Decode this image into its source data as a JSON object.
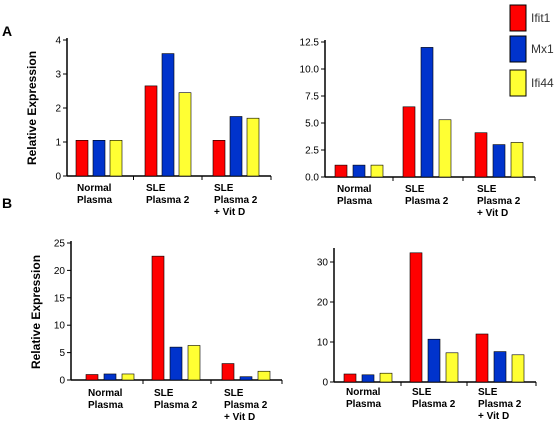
{
  "panels": [
    {
      "label": "A"
    },
    {
      "label": "B"
    }
  ],
  "ylabel": "Relative Expression",
  "legend": [
    {
      "name": "Ifit1",
      "color": "#ff0000"
    },
    {
      "name": "Mx1",
      "color": "#0033cc"
    },
    {
      "name": "Ifi44",
      "color": "#ffff33"
    }
  ],
  "chart_data": [
    {
      "type": "bar",
      "categories": [
        [
          "Normal",
          "Plasma"
        ],
        [
          "SLE",
          "Plasma 2"
        ],
        [
          "SLE",
          "Plasma 2",
          "+ Vit D"
        ]
      ],
      "ylim": [
        0,
        4
      ],
      "yticks": [
        "0",
        "1",
        "2",
        "3",
        "4"
      ],
      "ylabel": "Relative Expression",
      "series": [
        {
          "name": "Ifit1",
          "values": [
            1.05,
            2.65,
            1.05
          ]
        },
        {
          "name": "Mx1",
          "values": [
            1.05,
            3.6,
            1.75
          ]
        },
        {
          "name": "Ifi44",
          "values": [
            1.05,
            2.45,
            1.7
          ]
        }
      ]
    },
    {
      "type": "bar",
      "categories": [
        [
          "Normal",
          "Plasma"
        ],
        [
          "SLE",
          "Plasma 2"
        ],
        [
          "SLE",
          "Plasma 2",
          "+ Vit D"
        ]
      ],
      "ylim": [
        0,
        12.5
      ],
      "yticks": [
        "0.0",
        "2.5",
        "5.0",
        "7.5",
        "10.0",
        "12.5"
      ],
      "series": [
        {
          "name": "Ifit1",
          "values": [
            1.1,
            6.5,
            4.1
          ]
        },
        {
          "name": "Mx1",
          "values": [
            1.1,
            12.0,
            3.0
          ]
        },
        {
          "name": "Ifi44",
          "values": [
            1.1,
            5.3,
            3.2
          ]
        }
      ]
    },
    {
      "type": "bar",
      "categories": [
        [
          "Normal",
          "Plasma"
        ],
        [
          "SLE",
          "Plasma 2"
        ],
        [
          "SLE",
          "Plasma 2",
          "+ Vit D"
        ]
      ],
      "ylim": [
        0,
        25
      ],
      "yticks": [
        "0",
        "5",
        "10",
        "15",
        "20",
        "25"
      ],
      "ylabel": "Relative Expression",
      "series": [
        {
          "name": "Ifit1",
          "values": [
            1.0,
            22.6,
            3.0
          ]
        },
        {
          "name": "Mx1",
          "values": [
            1.1,
            6.0,
            0.6
          ]
        },
        {
          "name": "Ifi44",
          "values": [
            1.1,
            6.3,
            1.6
          ]
        }
      ]
    },
    {
      "type": "bar",
      "categories": [
        [
          "Normal",
          "Plasma"
        ],
        [
          "SLE",
          "Plasma 2"
        ],
        [
          "SLE",
          "Plasma 2",
          "+ Vit D"
        ]
      ],
      "ylim": [
        0,
        33
      ],
      "yticks": [
        "0",
        "10",
        "20",
        "30"
      ],
      "series": [
        {
          "name": "Ifit1",
          "values": [
            2.0,
            32.3,
            12.0
          ]
        },
        {
          "name": "Mx1",
          "values": [
            1.8,
            10.7,
            7.6
          ]
        },
        {
          "name": "Ifi44",
          "values": [
            2.2,
            7.3,
            6.8
          ]
        }
      ]
    }
  ]
}
